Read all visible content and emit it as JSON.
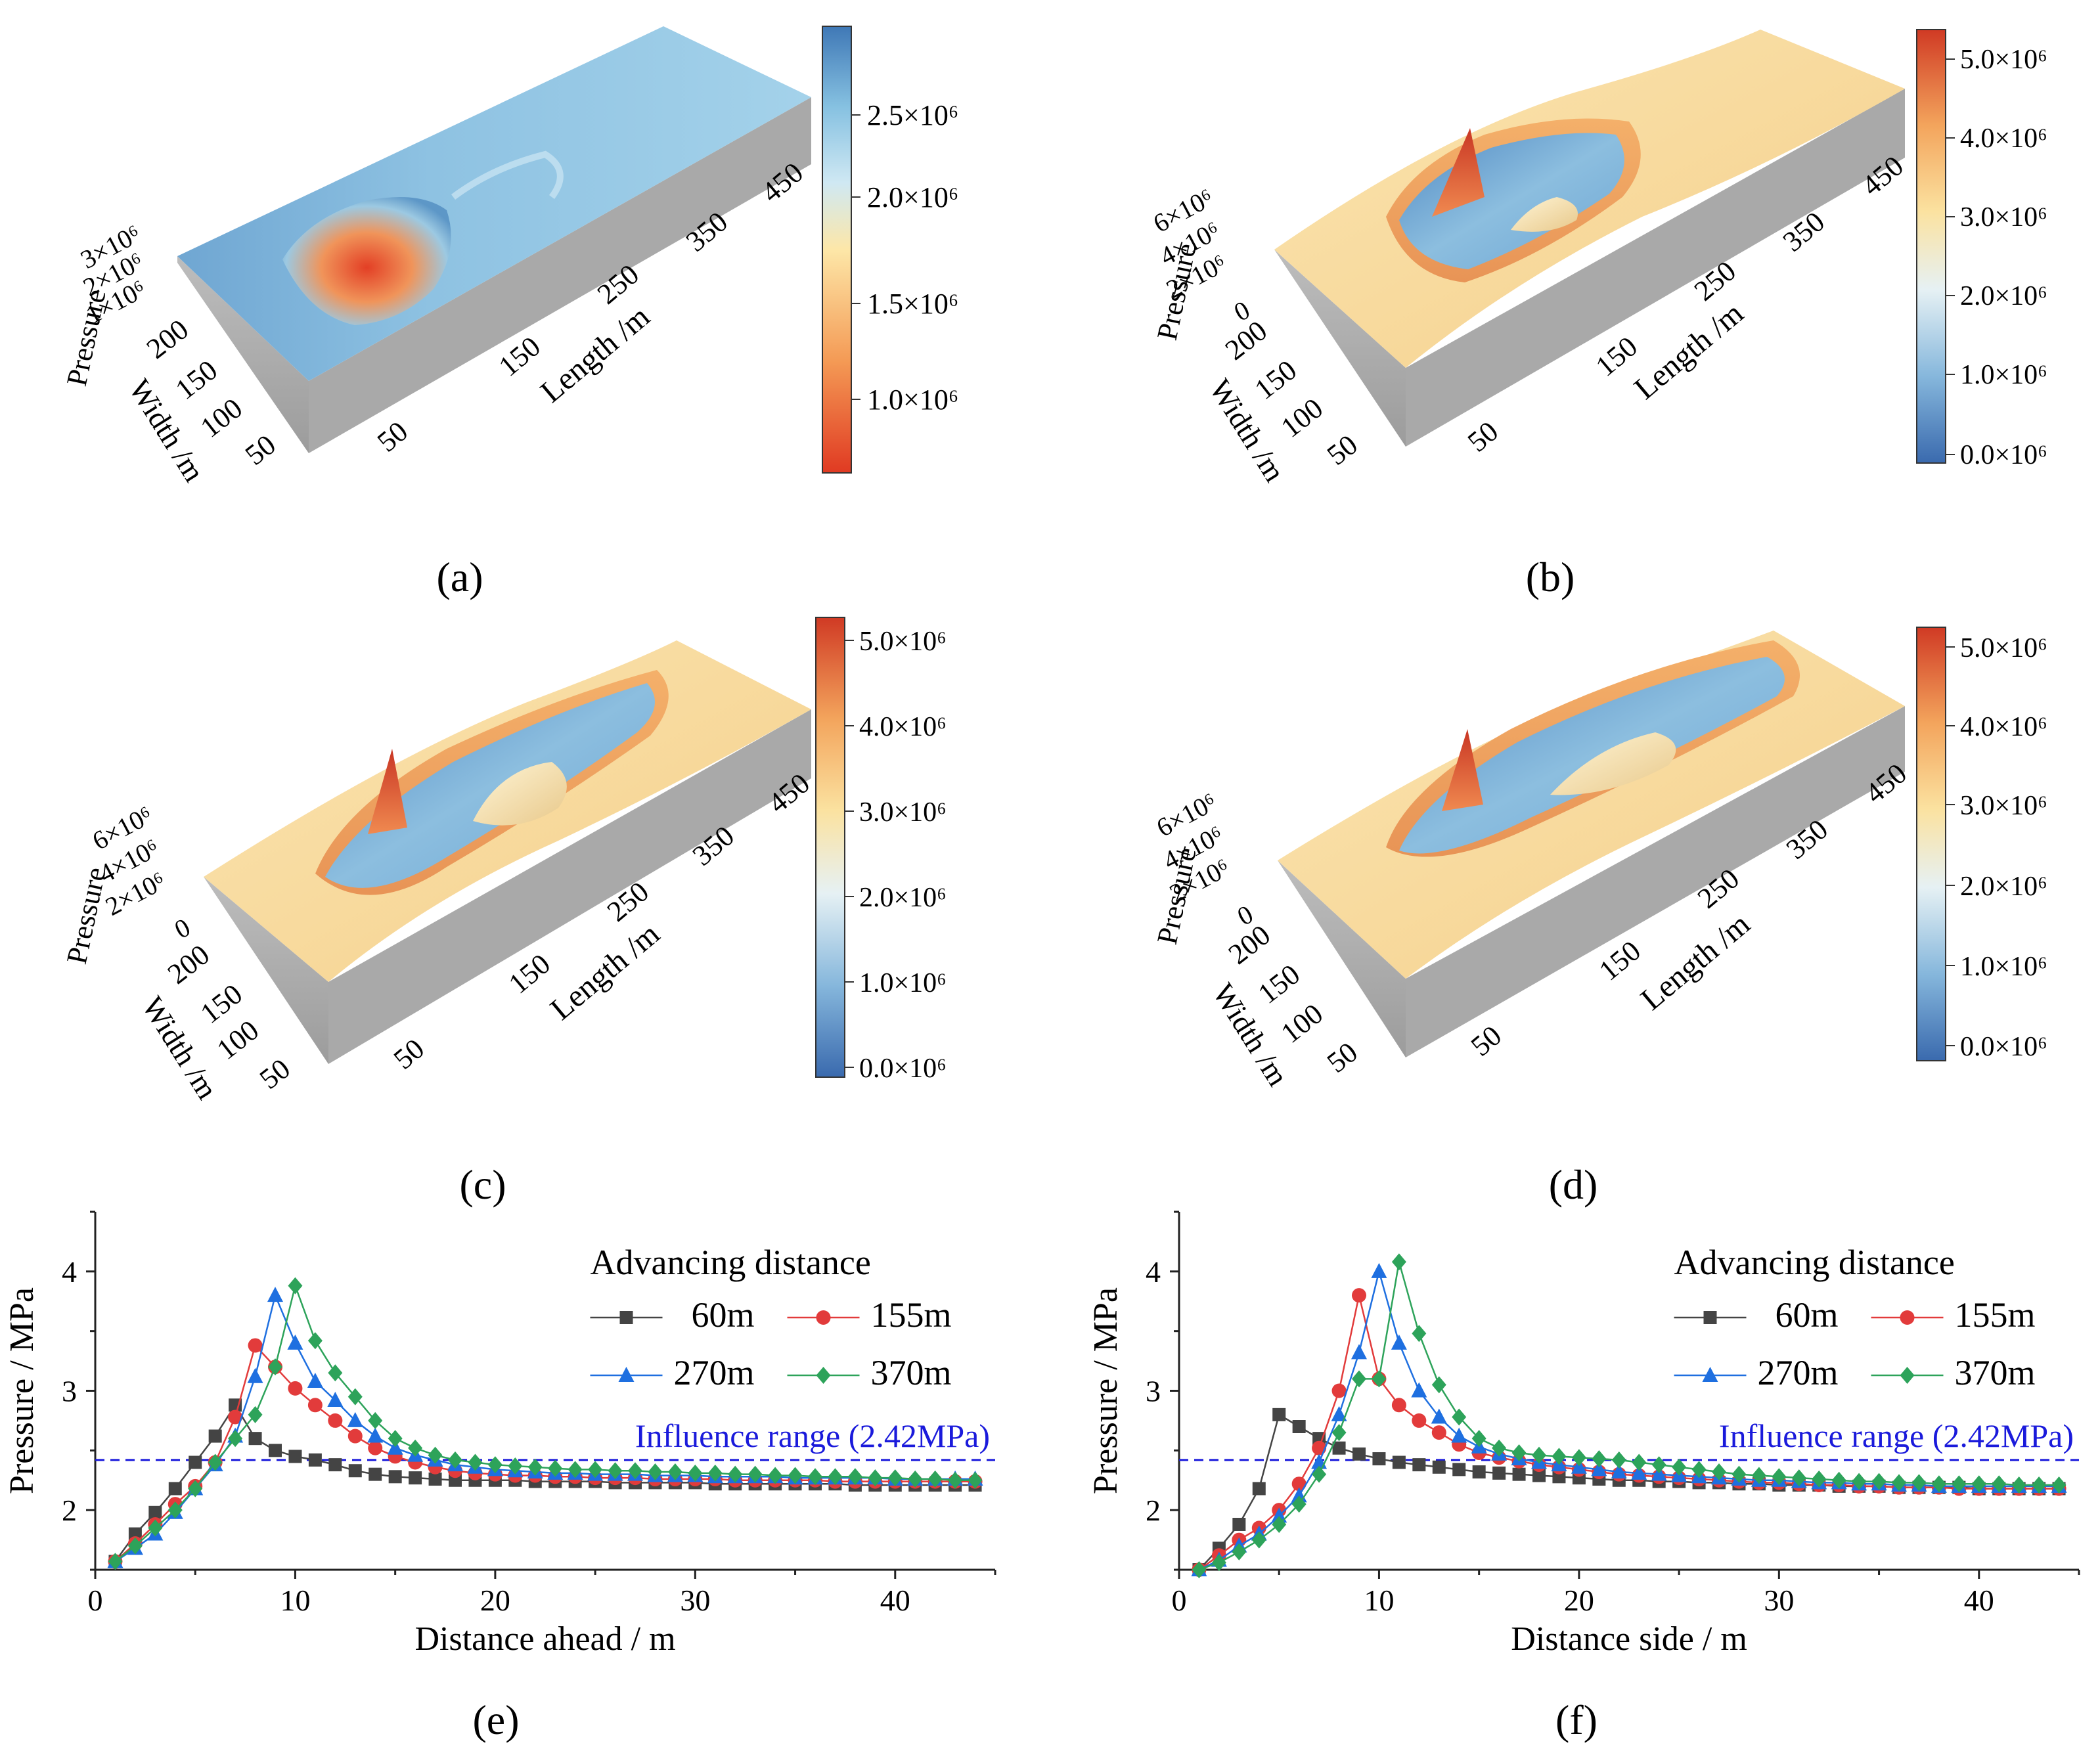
{
  "panels": [
    {
      "id": "a",
      "caption": "(a)"
    },
    {
      "id": "b",
      "caption": "(b)"
    },
    {
      "id": "c",
      "caption": "(c)"
    },
    {
      "id": "d",
      "caption": "(d)"
    },
    {
      "id": "e",
      "caption": "(e)"
    },
    {
      "id": "f",
      "caption": "(f)"
    }
  ],
  "surface_axes": {
    "pressure_label": "Pressure",
    "width_label": "Width /m",
    "length_label": "Length /m",
    "length_ticks": [
      "50",
      "150",
      "250",
      "350",
      "450"
    ],
    "width_ticks": [
      "50",
      "100",
      "150",
      "200"
    ],
    "pressure_ticks_a": [
      "1×10⁶",
      "2×10⁶",
      "3×10⁶"
    ],
    "pressure_ticks_bcd": [
      "0",
      "2×10⁶",
      "4×10⁶",
      "6×10⁶"
    ]
  },
  "colorbar_a": {
    "ticks": [
      "1.0×10⁶",
      "1.5×10⁶",
      "2.0×10⁶",
      "2.5×10⁶"
    ],
    "colors": [
      "#e03a22",
      "#f49a55",
      "#fde7a8",
      "#cfe8f3",
      "#86c1e1",
      "#3f78b6"
    ]
  },
  "colorbar_bcd": {
    "ticks": [
      "0.0×10⁶",
      "1.0×10⁶",
      "2.0×10⁶",
      "3.0×10⁶",
      "4.0×10⁶",
      "5.0×10⁶"
    ],
    "colors": [
      "#3a6aae",
      "#86b7dc",
      "#e6f1f4",
      "#fbe2a0",
      "#f3a45c",
      "#d03a24"
    ]
  },
  "chart_data": [
    {
      "type": "line",
      "panel": "e",
      "xlabel": "Distance ahead / m",
      "ylabel": "Pressure / MPa",
      "xlim": [
        0,
        45
      ],
      "ylim": [
        1.5,
        4.5
      ],
      "xticks": [
        0,
        10,
        20,
        30,
        40
      ],
      "yticks": [
        2,
        3,
        4
      ],
      "legend_title": "Advancing distance",
      "legend_position": "top-right",
      "reference_line": {
        "y": 2.42,
        "label": "Influence range (2.42MPa)",
        "color": "#1a1adb"
      },
      "series": [
        {
          "name": "60m",
          "color": "#444444",
          "marker": "square",
          "x": [
            1,
            2,
            3,
            4,
            5,
            6,
            7,
            8,
            9,
            10,
            11,
            12,
            13,
            14,
            15,
            16,
            17,
            18,
            19,
            20,
            21,
            22,
            23,
            24,
            25,
            26,
            27,
            28,
            29,
            30,
            31,
            32,
            33,
            34,
            35,
            36,
            37,
            38,
            39,
            40,
            41,
            42,
            43,
            44
          ],
          "y": [
            1.57,
            1.8,
            1.98,
            2.18,
            2.4,
            2.62,
            2.88,
            2.6,
            2.5,
            2.45,
            2.42,
            2.38,
            2.33,
            2.3,
            2.28,
            2.27,
            2.26,
            2.25,
            2.25,
            2.25,
            2.25,
            2.24,
            2.24,
            2.24,
            2.24,
            2.23,
            2.23,
            2.23,
            2.23,
            2.23,
            2.22,
            2.22,
            2.22,
            2.22,
            2.22,
            2.22,
            2.22,
            2.21,
            2.21,
            2.21,
            2.21,
            2.21,
            2.21,
            2.21
          ]
        },
        {
          "name": "155m",
          "color": "#e23b3b",
          "marker": "circle",
          "x": [
            1,
            2,
            3,
            4,
            5,
            6,
            7,
            8,
            9,
            10,
            11,
            12,
            13,
            14,
            15,
            16,
            17,
            18,
            19,
            20,
            21,
            22,
            23,
            24,
            25,
            26,
            27,
            28,
            29,
            30,
            31,
            32,
            33,
            34,
            35,
            36,
            37,
            38,
            39,
            40,
            41,
            42,
            43,
            44
          ],
          "y": [
            1.57,
            1.72,
            1.88,
            2.05,
            2.2,
            2.4,
            2.78,
            3.38,
            3.2,
            3.02,
            2.88,
            2.75,
            2.62,
            2.52,
            2.45,
            2.4,
            2.36,
            2.33,
            2.31,
            2.3,
            2.29,
            2.29,
            2.28,
            2.28,
            2.27,
            2.27,
            2.27,
            2.26,
            2.26,
            2.26,
            2.26,
            2.25,
            2.25,
            2.25,
            2.25,
            2.25,
            2.24,
            2.24,
            2.24,
            2.24,
            2.24,
            2.24,
            2.24,
            2.24
          ]
        },
        {
          "name": "270m",
          "color": "#1e6fe0",
          "marker": "triangle",
          "x": [
            1,
            2,
            3,
            4,
            5,
            6,
            7,
            8,
            9,
            10,
            11,
            12,
            13,
            14,
            15,
            16,
            17,
            18,
            19,
            20,
            21,
            22,
            23,
            24,
            25,
            26,
            27,
            28,
            29,
            30,
            31,
            32,
            33,
            34,
            35,
            36,
            37,
            38,
            39,
            40,
            41,
            42,
            43,
            44
          ],
          "y": [
            1.57,
            1.68,
            1.8,
            1.98,
            2.18,
            2.38,
            2.62,
            3.12,
            3.8,
            3.4,
            3.08,
            2.92,
            2.75,
            2.62,
            2.52,
            2.46,
            2.42,
            2.38,
            2.36,
            2.34,
            2.33,
            2.32,
            2.31,
            2.31,
            2.3,
            2.3,
            2.3,
            2.29,
            2.29,
            2.29,
            2.28,
            2.28,
            2.28,
            2.28,
            2.27,
            2.27,
            2.27,
            2.27,
            2.27,
            2.26,
            2.26,
            2.26,
            2.26,
            2.26
          ]
        },
        {
          "name": "370m",
          "color": "#2da35a",
          "marker": "diamond",
          "x": [
            1,
            2,
            3,
            4,
            5,
            6,
            7,
            8,
            9,
            10,
            11,
            12,
            13,
            14,
            15,
            16,
            17,
            18,
            19,
            20,
            21,
            22,
            23,
            24,
            25,
            26,
            27,
            28,
            29,
            30,
            31,
            32,
            33,
            34,
            35,
            36,
            37,
            38,
            39,
            40,
            41,
            42,
            43,
            44
          ],
          "y": [
            1.57,
            1.7,
            1.85,
            2.0,
            2.18,
            2.4,
            2.6,
            2.8,
            3.2,
            3.88,
            3.42,
            3.15,
            2.95,
            2.75,
            2.6,
            2.52,
            2.46,
            2.42,
            2.4,
            2.38,
            2.37,
            2.36,
            2.35,
            2.34,
            2.34,
            2.33,
            2.33,
            2.32,
            2.32,
            2.31,
            2.31,
            2.3,
            2.3,
            2.29,
            2.29,
            2.28,
            2.28,
            2.28,
            2.27,
            2.27,
            2.26,
            2.26,
            2.25,
            2.25
          ]
        }
      ]
    },
    {
      "type": "line",
      "panel": "f",
      "xlabel": "Distance side / m",
      "ylabel": "Pressure / MPa",
      "xlim": [
        0,
        45
      ],
      "ylim": [
        1.5,
        4.5
      ],
      "xticks": [
        0,
        10,
        20,
        30,
        40
      ],
      "yticks": [
        2,
        3,
        4
      ],
      "legend_title": "Advancing distance",
      "legend_position": "top-right",
      "reference_line": {
        "y": 2.42,
        "label": "Influence range (2.42MPa)",
        "color": "#1a1adb"
      },
      "series": [
        {
          "name": "60m",
          "color": "#444444",
          "marker": "square",
          "x": [
            1,
            2,
            3,
            4,
            5,
            6,
            7,
            8,
            9,
            10,
            11,
            12,
            13,
            14,
            15,
            16,
            17,
            18,
            19,
            20,
            21,
            22,
            23,
            24,
            25,
            26,
            27,
            28,
            29,
            30,
            31,
            32,
            33,
            34,
            35,
            36,
            37,
            38,
            39,
            40,
            41,
            42,
            43,
            44
          ],
          "y": [
            1.5,
            1.68,
            1.88,
            2.18,
            2.8,
            2.7,
            2.6,
            2.52,
            2.47,
            2.43,
            2.4,
            2.38,
            2.36,
            2.34,
            2.32,
            2.31,
            2.3,
            2.29,
            2.28,
            2.27,
            2.26,
            2.25,
            2.25,
            2.24,
            2.24,
            2.23,
            2.23,
            2.22,
            2.22,
            2.21,
            2.21,
            2.21,
            2.2,
            2.2,
            2.2,
            2.19,
            2.19,
            2.19,
            2.19,
            2.18,
            2.18,
            2.18,
            2.18,
            2.18
          ]
        },
        {
          "name": "155m",
          "color": "#e23b3b",
          "marker": "circle",
          "x": [
            1,
            2,
            3,
            4,
            5,
            6,
            7,
            8,
            9,
            10,
            11,
            12,
            13,
            14,
            15,
            16,
            17,
            18,
            19,
            20,
            21,
            22,
            23,
            24,
            25,
            26,
            27,
            28,
            29,
            30,
            31,
            32,
            33,
            34,
            35,
            36,
            37,
            38,
            39,
            40,
            41,
            42,
            43,
            44
          ],
          "y": [
            1.5,
            1.62,
            1.75,
            1.85,
            2.0,
            2.22,
            2.52,
            3.0,
            3.8,
            3.1,
            2.88,
            2.75,
            2.65,
            2.55,
            2.48,
            2.44,
            2.41,
            2.38,
            2.36,
            2.34,
            2.32,
            2.3,
            2.29,
            2.28,
            2.27,
            2.26,
            2.25,
            2.24,
            2.23,
            2.23,
            2.22,
            2.21,
            2.21,
            2.2,
            2.2,
            2.19,
            2.19,
            2.19,
            2.18,
            2.18,
            2.18,
            2.18,
            2.18,
            2.18
          ]
        },
        {
          "name": "270m",
          "color": "#1e6fe0",
          "marker": "triangle",
          "x": [
            1,
            2,
            3,
            4,
            5,
            6,
            7,
            8,
            9,
            10,
            11,
            12,
            13,
            14,
            15,
            16,
            17,
            18,
            19,
            20,
            21,
            22,
            23,
            24,
            25,
            26,
            27,
            28,
            29,
            30,
            31,
            32,
            33,
            34,
            35,
            36,
            37,
            38,
            39,
            40,
            41,
            42,
            43,
            44
          ],
          "y": [
            1.5,
            1.58,
            1.7,
            1.8,
            1.95,
            2.12,
            2.4,
            2.8,
            3.32,
            4.0,
            3.4,
            3.0,
            2.78,
            2.62,
            2.53,
            2.47,
            2.43,
            2.4,
            2.38,
            2.36,
            2.34,
            2.32,
            2.31,
            2.3,
            2.29,
            2.28,
            2.27,
            2.26,
            2.25,
            2.25,
            2.24,
            2.23,
            2.23,
            2.22,
            2.22,
            2.21,
            2.21,
            2.2,
            2.2,
            2.2,
            2.2,
            2.2,
            2.2,
            2.2
          ]
        },
        {
          "name": "370m",
          "color": "#2da35a",
          "marker": "diamond",
          "x": [
            1,
            2,
            3,
            4,
            5,
            6,
            7,
            8,
            9,
            10,
            11,
            12,
            13,
            14,
            15,
            16,
            17,
            18,
            19,
            20,
            21,
            22,
            23,
            24,
            25,
            26,
            27,
            28,
            29,
            30,
            31,
            32,
            33,
            34,
            35,
            36,
            37,
            38,
            39,
            40,
            41,
            42,
            43,
            44
          ],
          "y": [
            1.5,
            1.56,
            1.65,
            1.75,
            1.88,
            2.05,
            2.3,
            2.65,
            3.1,
            3.1,
            4.08,
            3.48,
            3.05,
            2.78,
            2.6,
            2.52,
            2.48,
            2.46,
            2.45,
            2.44,
            2.43,
            2.42,
            2.4,
            2.38,
            2.36,
            2.34,
            2.32,
            2.3,
            2.29,
            2.28,
            2.27,
            2.26,
            2.25,
            2.24,
            2.24,
            2.23,
            2.23,
            2.22,
            2.22,
            2.22,
            2.22,
            2.21,
            2.21,
            2.21
          ]
        }
      ]
    }
  ]
}
